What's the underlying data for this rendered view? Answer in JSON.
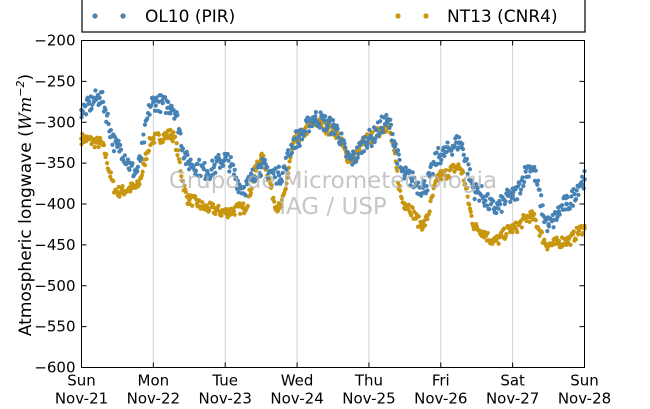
{
  "chart_data": {
    "type": "scatter",
    "title": "",
    "xlabel": "",
    "ylabel": "Atmospheric longwave (Wm⁻²)",
    "ylabel_main": "Atmospheric longwave",
    "ylabel_unit_open": "(",
    "ylabel_unit_W": "Wm",
    "ylabel_unit_exp": "−2",
    "ylabel_unit_close": ")",
    "ylim": [
      -600,
      -200
    ],
    "xlim": [
      0,
      7
    ],
    "yticks": [
      "−200",
      "−250",
      "−300",
      "−350",
      "−400",
      "−450",
      "−500",
      "−550",
      "−600"
    ],
    "ytick_values": [
      -200,
      -250,
      -300,
      -350,
      -400,
      -450,
      -500,
      -550,
      -600
    ],
    "xticks": [
      {
        "day": "Sun",
        "date": "Nov-21"
      },
      {
        "day": "Mon",
        "date": "Nov-22"
      },
      {
        "day": "Tue",
        "date": "Nov-23"
      },
      {
        "day": "Wed",
        "date": "Nov-24"
      },
      {
        "day": "Thu",
        "date": "Nov-25"
      },
      {
        "day": "Fri",
        "date": "Nov-26"
      },
      {
        "day": "Sat",
        "date": "Nov-27"
      },
      {
        "day": "Sun",
        "date": "Nov-28"
      }
    ],
    "grid": "vertical",
    "legend_position": "top",
    "watermark": [
      "Grupo de Micrometeorologia",
      "IAG / USP"
    ],
    "series": [
      {
        "name": "OL10 (PIR)",
        "color": "#4682b4",
        "x": [
          0,
          0.25,
          0.5,
          0.75,
          1,
          1.25,
          1.5,
          1.75,
          2,
          2.25,
          2.5,
          2.75,
          3,
          3.25,
          3.5,
          3.75,
          4,
          4.25,
          4.5,
          4.75,
          5,
          5.25,
          5.5,
          5.75,
          6,
          6.25,
          6.5,
          6.75,
          7
        ],
        "y": [
          -285,
          -270,
          -330,
          -360,
          -275,
          -280,
          -350,
          -360,
          -345,
          -380,
          -355,
          -365,
          -320,
          -295,
          -305,
          -345,
          -320,
          -300,
          -365,
          -380,
          -340,
          -325,
          -385,
          -405,
          -390,
          -355,
          -425,
          -400,
          -370
        ]
      },
      {
        "name": "NT13 (CNR4)",
        "color": "#c8960f",
        "x": [
          0,
          0.25,
          0.5,
          0.75,
          1,
          1.25,
          1.5,
          1.75,
          2,
          2.25,
          2.5,
          2.75,
          3,
          3.25,
          3.5,
          3.75,
          4,
          4.25,
          4.5,
          4.75,
          5,
          5.25,
          5.5,
          5.75,
          6,
          6.25,
          6.5,
          6.75,
          7
        ],
        "y": [
          -320,
          -325,
          -385,
          -380,
          -320,
          -315,
          -395,
          -405,
          -410,
          -405,
          -345,
          -405,
          -320,
          -300,
          -310,
          -345,
          -320,
          -305,
          -400,
          -425,
          -365,
          -355,
          -430,
          -445,
          -430,
          -415,
          -450,
          -445,
          -430
        ]
      }
    ]
  }
}
